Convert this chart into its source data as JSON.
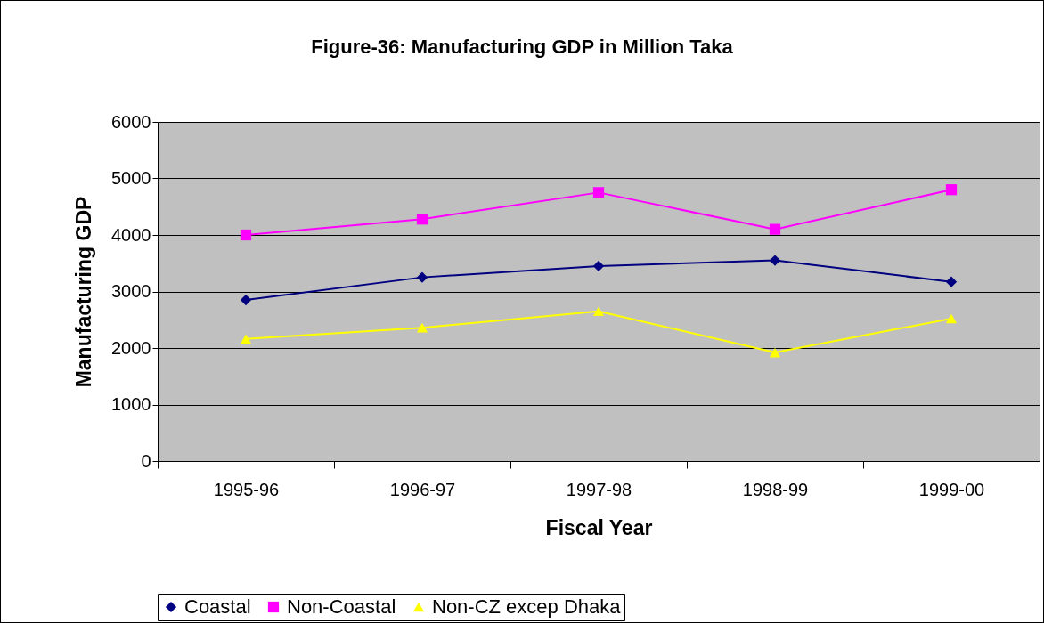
{
  "chart_data": {
    "type": "line",
    "title": "Figure-36: Manufacturing GDP in Million Taka",
    "xlabel": "Fiscal Year",
    "ylabel": "Manufacturing GDP",
    "categories": [
      "1995-96",
      "1996-97",
      "1997-98",
      "1998-99",
      "1999-00"
    ],
    "ylim": [
      0,
      6000
    ],
    "yticks": [
      0,
      1000,
      2000,
      3000,
      4000,
      5000,
      6000
    ],
    "grid": "y",
    "legend": "bottom",
    "series": [
      {
        "name": "Coastal",
        "color": "#000080",
        "marker": "diamond",
        "values": [
          2850,
          3250,
          3450,
          3550,
          3170
        ]
      },
      {
        "name": "Non-Coastal",
        "color": "#ff00ff",
        "marker": "square",
        "values": [
          4000,
          4280,
          4750,
          4100,
          4800
        ]
      },
      {
        "name": "Non-CZ excep Dhaka",
        "color": "#ffff00",
        "marker": "triangle",
        "values": [
          2160,
          2360,
          2650,
          1920,
          2520
        ]
      }
    ]
  }
}
